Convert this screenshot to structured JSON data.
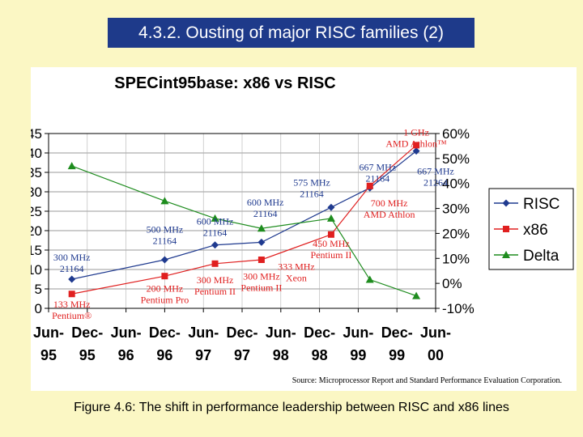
{
  "slide": {
    "title": "4.3.2. Ousting of major RISC families (2)",
    "caption": "Figure 4.6: The shift in performance leadership between RISC and x86 lines"
  },
  "chart_data": {
    "type": "line",
    "title": "SPECint95base: x86 vs RISC",
    "source": "Source: Microprocessor Report and Standard Performance Evaluation Corporation.",
    "x_ticks": [
      {
        "top": "Jun-",
        "bottom": "95"
      },
      {
        "top": "Dec-",
        "bottom": "95"
      },
      {
        "top": "Jun-",
        "bottom": "96"
      },
      {
        "top": "Dec-",
        "bottom": "96"
      },
      {
        "top": "Jun-",
        "bottom": "97"
      },
      {
        "top": "Dec-",
        "bottom": "97"
      },
      {
        "top": "Jun-",
        "bottom": "98"
      },
      {
        "top": "Dec-",
        "bottom": "98"
      },
      {
        "top": "Jun-",
        "bottom": "99"
      },
      {
        "top": "Dec-",
        "bottom": "99"
      },
      {
        "top": "Jun-",
        "bottom": "00"
      }
    ],
    "y_left": {
      "min": 0,
      "max": 45,
      "ticks": [
        "0",
        "5",
        "10",
        "15",
        "20",
        "25",
        "30",
        "35",
        "40",
        "45"
      ]
    },
    "y_right": {
      "min": -10,
      "max": 60,
      "ticks": [
        "-10%",
        "0%",
        "10%",
        "20%",
        "30%",
        "40%",
        "50%",
        "60%"
      ]
    },
    "grid": true,
    "legend_position": "right",
    "series": [
      {
        "name": "RISC",
        "color": "#1f3a8f",
        "marker": "diamond",
        "axis": "left",
        "points": [
          {
            "x": 0.6,
            "y": 7.5
          },
          {
            "x": 3.0,
            "y": 12.5
          },
          {
            "x": 4.3,
            "y": 16.3
          },
          {
            "x": 5.5,
            "y": 17
          },
          {
            "x": 7.3,
            "y": 26
          },
          {
            "x": 8.3,
            "y": 31
          },
          {
            "x": 9.5,
            "y": 40.5
          }
        ]
      },
      {
        "name": "x86",
        "color": "#e02020",
        "marker": "square",
        "axis": "left",
        "points": [
          {
            "x": 0.6,
            "y": 3.7
          },
          {
            "x": 3.0,
            "y": 8.3
          },
          {
            "x": 4.3,
            "y": 11.5
          },
          {
            "x": 5.5,
            "y": 12.5
          },
          {
            "x": 7.3,
            "y": 19
          },
          {
            "x": 8.3,
            "y": 31.5
          },
          {
            "x": 9.5,
            "y": 42
          }
        ]
      },
      {
        "name": "Delta",
        "color": "#1e8c1e",
        "marker": "triangle",
        "axis": "right",
        "points": [
          {
            "x": 0.6,
            "y": 47
          },
          {
            "x": 3.0,
            "y": 33
          },
          {
            "x": 4.3,
            "y": 26
          },
          {
            "x": 5.5,
            "y": 22
          },
          {
            "x": 7.3,
            "y": 26
          },
          {
            "x": 8.3,
            "y": 1.5
          },
          {
            "x": 9.5,
            "y": -5
          }
        ]
      }
    ],
    "annotations": [
      {
        "lines": [
          "1 GHz",
          "AMD Athlon™"
        ],
        "color": "#e02020",
        "x": 9.5,
        "y": 44.5
      },
      {
        "lines": [
          "667 MHz",
          "21164"
        ],
        "color": "#1f3a8f",
        "x": 8.5,
        "y": 35.5
      },
      {
        "lines": [
          "667 MHz",
          "21264"
        ],
        "color": "#1f3a8f",
        "x": 10.0,
        "y": 34.5
      },
      {
        "lines": [
          "575 MHz",
          "21164"
        ],
        "color": "#1f3a8f",
        "x": 6.8,
        "y": 31.6
      },
      {
        "lines": [
          "600 MHz",
          "21164"
        ],
        "color": "#1f3a8f",
        "x": 5.6,
        "y": 26.5
      },
      {
        "lines": [
          "700 MHz",
          "AMD Athlon"
        ],
        "color": "#e02020",
        "x": 8.8,
        "y": 26.3
      },
      {
        "lines": [
          "600 MHz",
          "21164"
        ],
        "color": "#1f3a8f",
        "x": 4.3,
        "y": 21.6
      },
      {
        "lines": [
          "500 MHz",
          "21164"
        ],
        "color": "#1f3a8f",
        "x": 3.0,
        "y": 19.5
      },
      {
        "lines": [
          "450 MHz",
          "Pentium II"
        ],
        "color": "#e02020",
        "x": 7.3,
        "y": 15.8
      },
      {
        "lines": [
          "300 MHz",
          "21164"
        ],
        "color": "#1f3a8f",
        "x": 0.6,
        "y": 12.3
      },
      {
        "lines": [
          "333 MHz",
          "Xeon"
        ],
        "color": "#e02020",
        "x": 6.4,
        "y": 9.9
      },
      {
        "lines": [
          "300 MHz",
          "Pentium II"
        ],
        "color": "#e02020",
        "x": 5.5,
        "y": 7.4
      },
      {
        "lines": [
          "300 MHz",
          "Pentium II"
        ],
        "color": "#e02020",
        "x": 4.3,
        "y": 6.5
      },
      {
        "lines": [
          "200 MHz",
          "Pentium Pro"
        ],
        "color": "#e02020",
        "x": 3.0,
        "y": 4.3
      },
      {
        "lines": [
          "133 MHz",
          "Pentium®"
        ],
        "color": "#e02020",
        "x": 0.6,
        "y": 0.2
      }
    ]
  }
}
